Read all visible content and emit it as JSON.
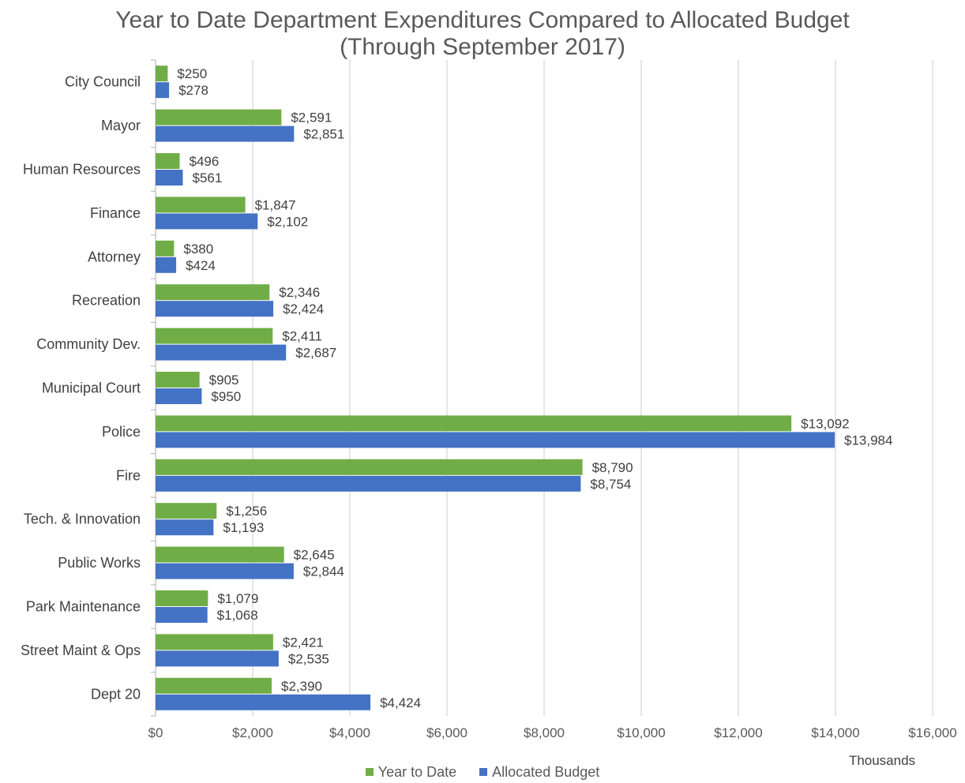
{
  "chart_data": {
    "type": "bar",
    "orientation": "horizontal",
    "title": "Year to Date Department Expenditures Compared to Allocated Budget",
    "subtitle": "(Through September 2017)",
    "unit_label": "Thousands",
    "categories": [
      "City Council",
      "Mayor",
      "Human Resources",
      "Finance",
      "Attorney",
      "Recreation",
      "Community Dev.",
      "Municipal Court",
      "Police",
      "Fire",
      "Tech. & Innovation",
      "Public Works",
      "Park Maintenance",
      "Street Maint & Ops",
      "Dept 20"
    ],
    "series": [
      {
        "name": "Year to Date",
        "color": "#70AD47",
        "values": [
          250,
          2591,
          496,
          1847,
          380,
          2346,
          2411,
          905,
          13092,
          8790,
          1256,
          2645,
          1079,
          2421,
          2390
        ],
        "labels": [
          "$250",
          "$2,591",
          "$496",
          "$1,847",
          "$380",
          "$2,346",
          "$2,411",
          "$905",
          "$13,092",
          "$8,790",
          "$1,256",
          "$2,645",
          "$1,079",
          "$2,421",
          "$2,390"
        ]
      },
      {
        "name": "Allocated Budget",
        "color": "#4472C4",
        "values": [
          278,
          2851,
          561,
          2102,
          424,
          2424,
          2687,
          950,
          13984,
          8754,
          1193,
          2844,
          1068,
          2535,
          4424
        ],
        "labels": [
          "$278",
          "$2,851",
          "$561",
          "$2,102",
          "$424",
          "$2,424",
          "$2,687",
          "$950",
          "$13,984",
          "$8,754",
          "$1,193",
          "$2,844",
          "$1,068",
          "$2,535",
          "$4,424"
        ]
      }
    ],
    "xlim": [
      0,
      16000
    ],
    "xticks": [
      0,
      2000,
      4000,
      6000,
      8000,
      10000,
      12000,
      14000,
      16000
    ],
    "xtick_labels": [
      "$0",
      "$2,000",
      "$4,000",
      "$6,000",
      "$8,000",
      "$10,000",
      "$12,000",
      "$14,000",
      "$16,000"
    ],
    "grid": "vertical",
    "legend_position": "bottom"
  }
}
